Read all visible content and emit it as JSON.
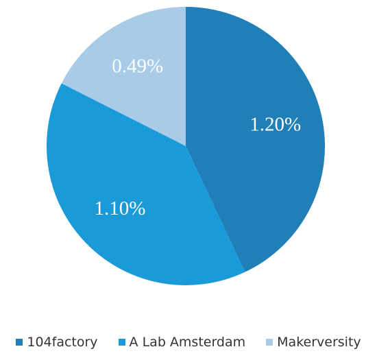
{
  "chart_data": {
    "type": "pie",
    "categories": [
      "104factory",
      "A Lab Amsterdam",
      "Makerversity"
    ],
    "values": [
      1.2,
      1.1,
      0.49
    ],
    "value_labels": [
      "1.20%",
      "1.10%",
      "0.49%"
    ],
    "colors": [
      "#1f7fb6",
      "#1a9ad8",
      "#a8cbe8"
    ]
  }
}
